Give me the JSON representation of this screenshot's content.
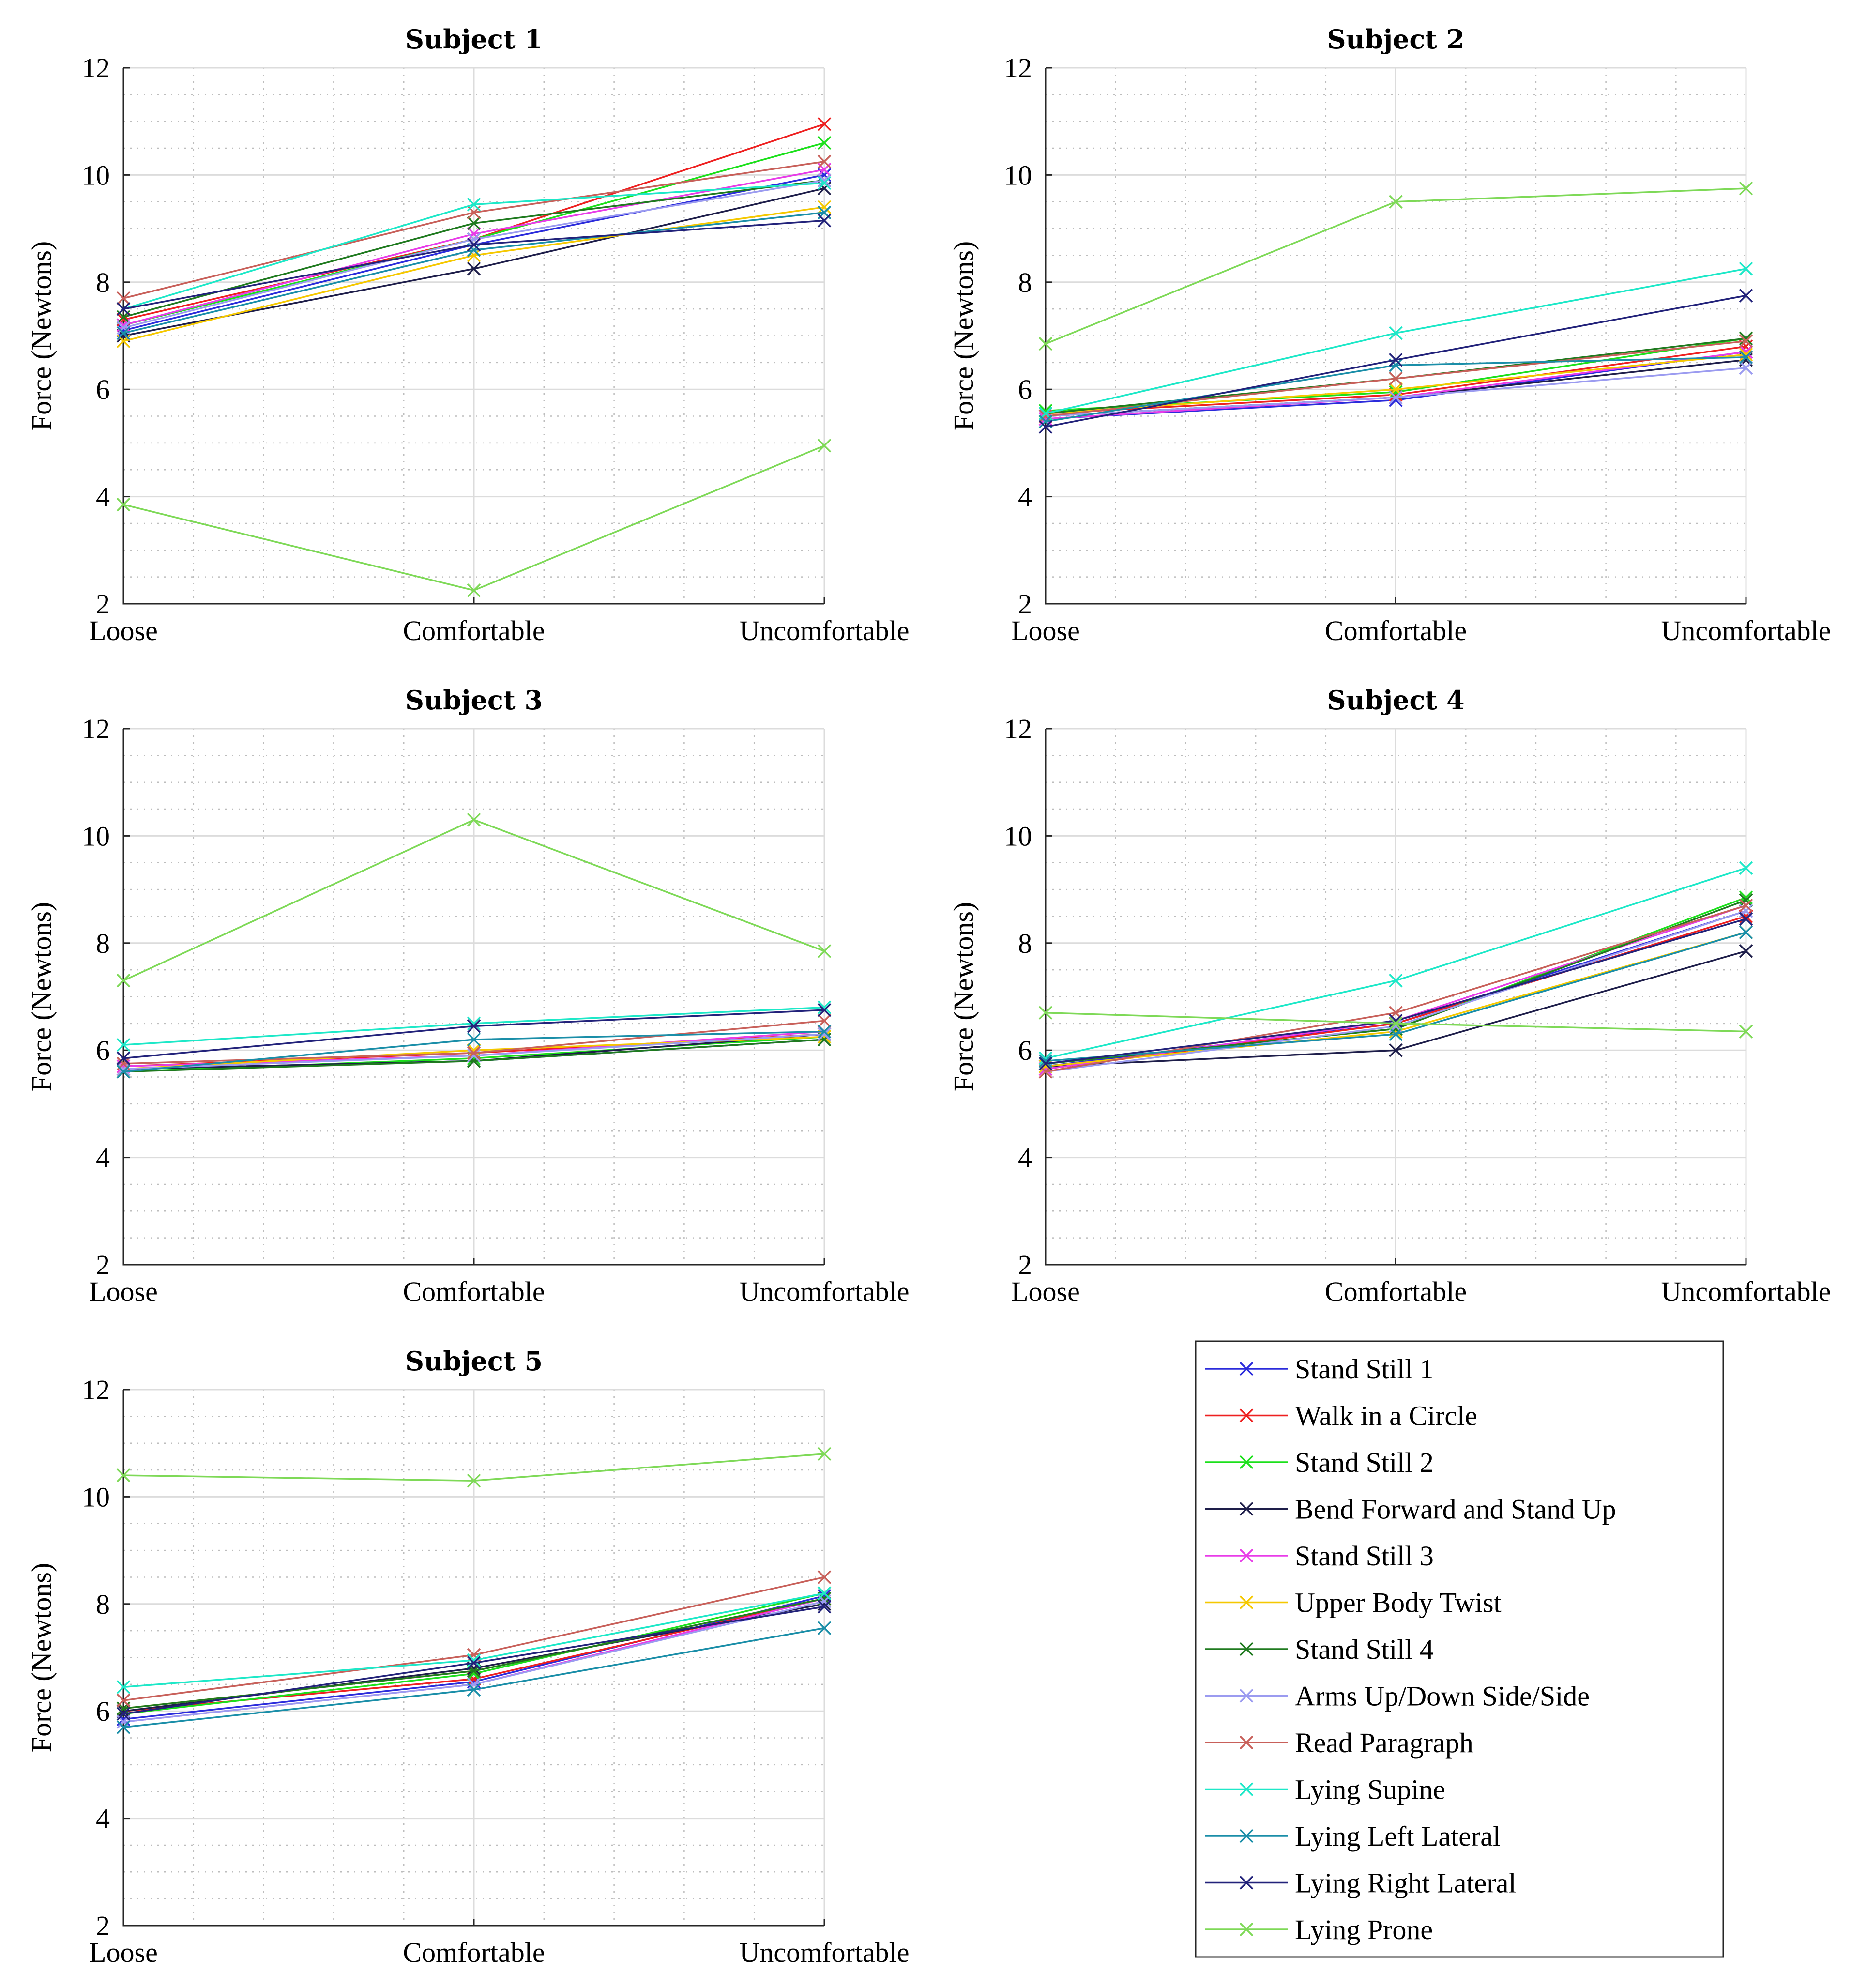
{
  "figure": {
    "legend": {
      "entries": [
        {
          "name": "Stand Still 1",
          "color": "#2b2bdb"
        },
        {
          "name": "Walk in a Circle",
          "color": "#ee2020"
        },
        {
          "name": "Stand Still 2",
          "color": "#1be01b"
        },
        {
          "name": "Bend Forward and Stand Up",
          "color": "#1e1e4a"
        },
        {
          "name": "Stand Still 3",
          "color": "#e83ce8"
        },
        {
          "name": "Upper Body Twist",
          "color": "#f5c800"
        },
        {
          "name": "Stand Still 4",
          "color": "#1f7a1f"
        },
        {
          "name": "Arms Up/Down Side/Side",
          "color": "#9b9bf0"
        },
        {
          "name": "Read Paragraph",
          "color": "#c8605a"
        },
        {
          "name": "Lying Supine",
          "color": "#1de8c8"
        },
        {
          "name": "Lying Left Lateral",
          "color": "#1a8ea8"
        },
        {
          "name": "Lying Right Lateral",
          "color": "#22227a"
        },
        {
          "name": "Lying Prone",
          "color": "#7ed957"
        }
      ]
    }
  },
  "chart_data": [
    {
      "type": "line",
      "title": "Subject 1",
      "xlabel": "",
      "ylabel": "Force (Newtons)",
      "categories": [
        "Loose",
        "Comfortable",
        "Uncomfortable"
      ],
      "ylim": [
        2,
        12
      ],
      "yticks": [
        "2",
        "4",
        "6",
        "8",
        "10",
        "12"
      ],
      "series": [
        {
          "name": "Stand Still 1",
          "values": [
            7.1,
            8.7,
            10.0
          ]
        },
        {
          "name": "Walk in a Circle",
          "values": [
            7.3,
            8.8,
            10.95
          ]
        },
        {
          "name": "Stand Still 2",
          "values": [
            7.2,
            8.8,
            10.6
          ]
        },
        {
          "name": "Bend Forward and Stand Up",
          "values": [
            7.0,
            8.25,
            9.75
          ]
        },
        {
          "name": "Stand Still 3",
          "values": [
            7.2,
            8.9,
            10.1
          ]
        },
        {
          "name": "Upper Body Twist",
          "values": [
            6.9,
            8.5,
            9.4
          ]
        },
        {
          "name": "Stand Still 4",
          "values": [
            7.35,
            9.1,
            9.9
          ]
        },
        {
          "name": "Arms Up/Down Side/Side",
          "values": [
            7.15,
            8.8,
            9.9
          ]
        },
        {
          "name": "Read Paragraph",
          "values": [
            7.7,
            9.3,
            10.25
          ]
        },
        {
          "name": "Lying Supine",
          "values": [
            7.5,
            9.45,
            9.85
          ]
        },
        {
          "name": "Lying Left Lateral",
          "values": [
            7.05,
            8.6,
            9.3
          ]
        },
        {
          "name": "Lying Right Lateral",
          "values": [
            7.5,
            8.7,
            9.15
          ]
        },
        {
          "name": "Lying Prone",
          "values": [
            3.85,
            2.25,
            4.95
          ]
        }
      ]
    },
    {
      "type": "line",
      "title": "Subject 2",
      "xlabel": "",
      "ylabel": "Force (Newtons)",
      "categories": [
        "Loose",
        "Comfortable",
        "Uncomfortable"
      ],
      "ylim": [
        2,
        12
      ],
      "yticks": [
        "2",
        "4",
        "6",
        "8",
        "10",
        "12"
      ],
      "series": [
        {
          "name": "Stand Still 1",
          "values": [
            5.45,
            5.8,
            6.7
          ]
        },
        {
          "name": "Walk in a Circle",
          "values": [
            5.55,
            5.9,
            6.8
          ]
        },
        {
          "name": "Stand Still 2",
          "values": [
            5.6,
            5.95,
            6.95
          ]
        },
        {
          "name": "Bend Forward and Stand Up",
          "values": [
            5.5,
            5.85,
            6.55
          ]
        },
        {
          "name": "Stand Still 3",
          "values": [
            5.45,
            5.85,
            6.7
          ]
        },
        {
          "name": "Upper Body Twist",
          "values": [
            5.55,
            6.0,
            6.65
          ]
        },
        {
          "name": "Stand Still 4",
          "values": [
            5.55,
            6.2,
            6.95
          ]
        },
        {
          "name": "Arms Up/Down Side/Side",
          "values": [
            5.5,
            5.85,
            6.4
          ]
        },
        {
          "name": "Read Paragraph",
          "values": [
            5.5,
            6.2,
            6.9
          ]
        },
        {
          "name": "Lying Supine",
          "values": [
            5.55,
            7.05,
            8.25
          ]
        },
        {
          "name": "Lying Left Lateral",
          "values": [
            5.4,
            6.45,
            6.6
          ]
        },
        {
          "name": "Lying Right Lateral",
          "values": [
            5.3,
            6.55,
            7.75
          ]
        },
        {
          "name": "Lying Prone",
          "values": [
            6.85,
            9.5,
            9.75
          ]
        }
      ]
    },
    {
      "type": "line",
      "title": "Subject 3",
      "xlabel": "",
      "ylabel": "Force (Newtons)",
      "categories": [
        "Loose",
        "Comfortable",
        "Uncomfortable"
      ],
      "ylim": [
        2,
        12
      ],
      "yticks": [
        "2",
        "4",
        "6",
        "8",
        "10",
        "12"
      ],
      "series": [
        {
          "name": "Stand Still 1",
          "values": [
            5.65,
            5.8,
            6.2
          ]
        },
        {
          "name": "Walk in a Circle",
          "values": [
            5.7,
            5.95,
            6.3
          ]
        },
        {
          "name": "Stand Still 2",
          "values": [
            5.6,
            5.85,
            6.25
          ]
        },
        {
          "name": "Bend Forward and Stand Up",
          "values": [
            5.65,
            5.8,
            6.3
          ]
        },
        {
          "name": "Stand Still 3",
          "values": [
            5.7,
            5.9,
            6.35
          ]
        },
        {
          "name": "Upper Body Twist",
          "values": [
            5.65,
            6.0,
            6.25
          ]
        },
        {
          "name": "Stand Still 4",
          "values": [
            5.6,
            5.8,
            6.2
          ]
        },
        {
          "name": "Arms Up/Down Side/Side",
          "values": [
            5.65,
            5.9,
            6.3
          ]
        },
        {
          "name": "Read Paragraph",
          "values": [
            5.75,
            5.95,
            6.55
          ]
        },
        {
          "name": "Lying Supine",
          "values": [
            6.1,
            6.5,
            6.8
          ]
        },
        {
          "name": "Lying Left Lateral",
          "values": [
            5.6,
            6.2,
            6.35
          ]
        },
        {
          "name": "Lying Right Lateral",
          "values": [
            5.85,
            6.45,
            6.75
          ]
        },
        {
          "name": "Lying Prone",
          "values": [
            7.3,
            10.3,
            7.85
          ]
        }
      ]
    },
    {
      "type": "line",
      "title": "Subject 4",
      "xlabel": "",
      "ylabel": "Force (Newtons)",
      "categories": [
        "Loose",
        "Comfortable",
        "Uncomfortable"
      ],
      "ylim": [
        2,
        12
      ],
      "yticks": [
        "2",
        "4",
        "6",
        "8",
        "10",
        "12"
      ],
      "series": [
        {
          "name": "Stand Still 1",
          "values": [
            5.7,
            6.5,
            8.6
          ]
        },
        {
          "name": "Walk in a Circle",
          "values": [
            5.65,
            6.5,
            8.5
          ]
        },
        {
          "name": "Stand Still 2",
          "values": [
            5.75,
            6.4,
            8.85
          ]
        },
        {
          "name": "Bend Forward and Stand Up",
          "values": [
            5.7,
            6.0,
            7.85
          ]
        },
        {
          "name": "Stand Still 3",
          "values": [
            5.65,
            6.55,
            8.7
          ]
        },
        {
          "name": "Upper Body Twist",
          "values": [
            5.7,
            6.35,
            8.2
          ]
        },
        {
          "name": "Stand Still 4",
          "values": [
            5.75,
            6.4,
            8.8
          ]
        },
        {
          "name": "Arms Up/Down Side/Side",
          "values": [
            5.6,
            6.45,
            8.6
          ]
        },
        {
          "name": "Read Paragraph",
          "values": [
            5.6,
            6.7,
            8.7
          ]
        },
        {
          "name": "Lying Supine",
          "values": [
            5.85,
            7.3,
            9.4
          ]
        },
        {
          "name": "Lying Left Lateral",
          "values": [
            5.8,
            6.3,
            8.2
          ]
        },
        {
          "name": "Lying Right Lateral",
          "values": [
            5.75,
            6.55,
            8.45
          ]
        },
        {
          "name": "Lying Prone",
          "values": [
            6.7,
            6.5,
            6.35
          ]
        }
      ]
    },
    {
      "type": "line",
      "title": "Subject 5",
      "xlabel": "",
      "ylabel": "Force (Newtons)",
      "categories": [
        "Loose",
        "Comfortable",
        "Uncomfortable"
      ],
      "ylim": [
        2,
        12
      ],
      "yticks": [
        "2",
        "4",
        "6",
        "8",
        "10",
        "12"
      ],
      "series": [
        {
          "name": "Stand Still 1",
          "values": [
            5.85,
            6.55,
            8.15
          ]
        },
        {
          "name": "Walk in a Circle",
          "values": [
            6.0,
            6.6,
            8.1
          ]
        },
        {
          "name": "Stand Still 2",
          "values": [
            5.95,
            6.7,
            8.2
          ]
        },
        {
          "name": "Bend Forward and Stand Up",
          "values": [
            6.0,
            6.8,
            8.0
          ]
        },
        {
          "name": "Stand Still 3",
          "values": [
            5.8,
            6.5,
            8.1
          ]
        },
        {
          "name": "Upper Body Twist",
          "values": [
            6.05,
            6.75,
            8.1
          ]
        },
        {
          "name": "Stand Still 4",
          "values": [
            6.05,
            6.75,
            8.1
          ]
        },
        {
          "name": "Arms Up/Down Side/Side",
          "values": [
            5.8,
            6.5,
            8.05
          ]
        },
        {
          "name": "Read Paragraph",
          "values": [
            6.2,
            7.05,
            8.5
          ]
        },
        {
          "name": "Lying Supine",
          "values": [
            6.45,
            6.95,
            8.2
          ]
        },
        {
          "name": "Lying Left Lateral",
          "values": [
            5.7,
            6.4,
            7.55
          ]
        },
        {
          "name": "Lying Right Lateral",
          "values": [
            5.95,
            6.9,
            7.95
          ]
        },
        {
          "name": "Lying Prone",
          "values": [
            10.4,
            10.3,
            10.8
          ]
        }
      ]
    }
  ]
}
